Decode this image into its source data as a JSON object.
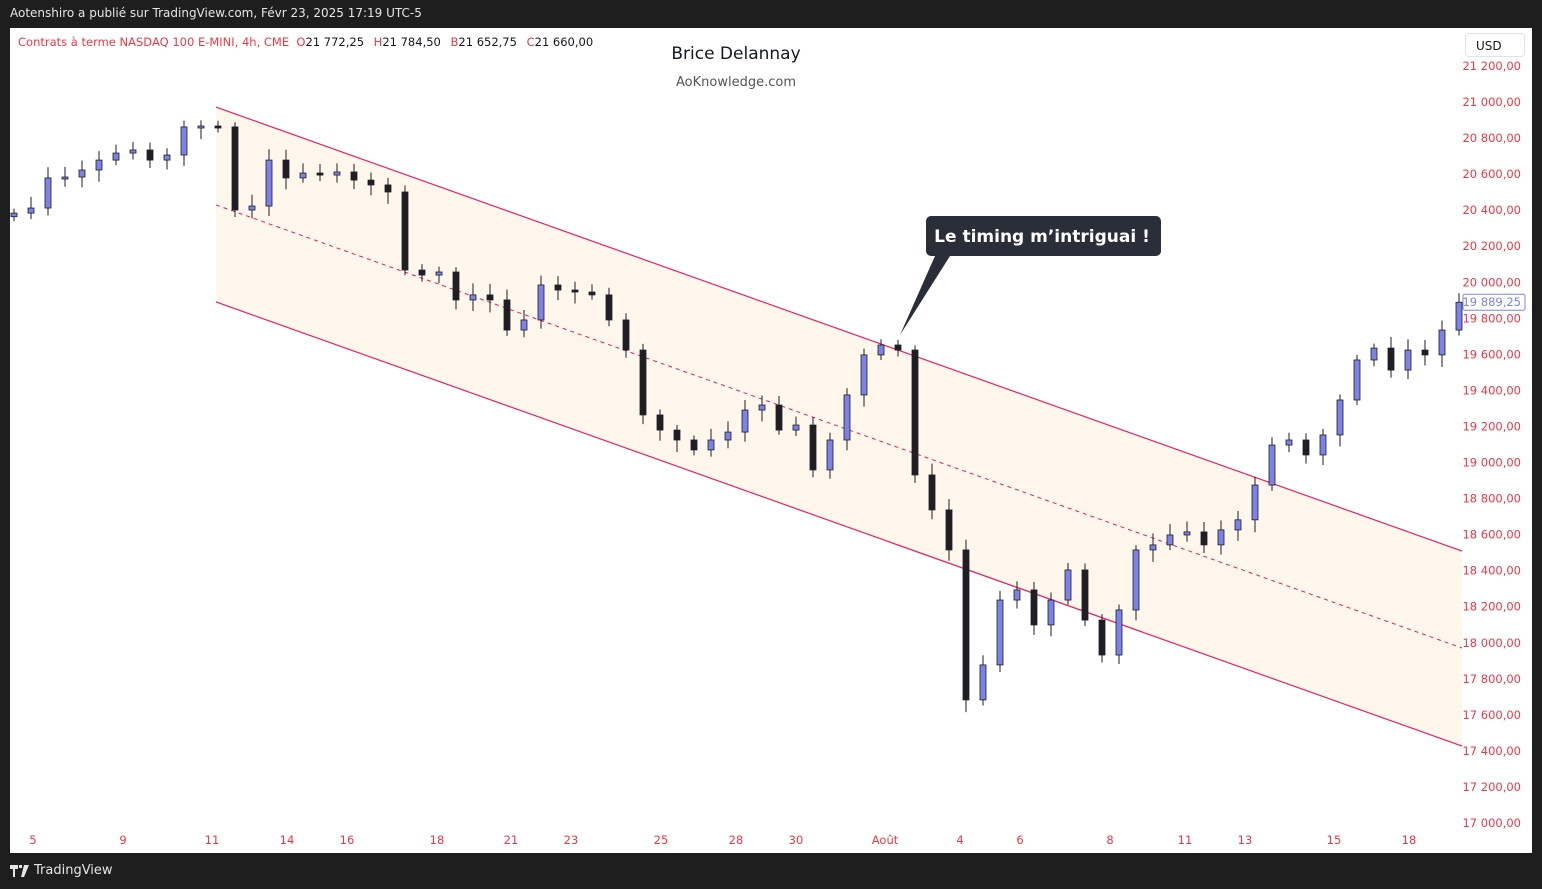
{
  "header": {
    "published": "Aotenshiro a publié sur TradingView.com, Févr 23, 2025 17:19 UTC-5"
  },
  "legend": {
    "symbol": "Contrats à terme NASDAQ 100 E-MINI, 4h, CME",
    "o_label": "O",
    "o": "21 772,25",
    "h_label": "H",
    "h": "21 784,50",
    "b_label": "B",
    "b": "21 652,75",
    "c_label": "C",
    "c": "21 660,00"
  },
  "watermark": {
    "title": "Brice Delannay",
    "subtitle": "AoKnowledge.com"
  },
  "currency": "USD",
  "callout": "Le timing m’intriguai !",
  "footer": {
    "brand": "TradingView"
  },
  "colors": {
    "up": "#7b83e8",
    "down": "#1e1e24",
    "channel": "#e91e63",
    "fill": "#fff6ec",
    "axis_text": "#f23645",
    "last_price": "#7b83e8"
  },
  "chart_data": {
    "type": "candlestick",
    "y_ticks": [
      "21 200,00",
      "21 000,00",
      "20 800,00",
      "20 600,00",
      "20 400,00",
      "20 200,00",
      "20 000,00",
      "19 800,00",
      "19 600,00",
      "19 400,00",
      "19 200,00",
      "19 000,00",
      "18 800,00",
      "18 600,00",
      "18 400,00",
      "18 200,00",
      "18 000,00",
      "17 800,00",
      "17 600,00",
      "17 400,00",
      "17 200,00",
      "17 000,00"
    ],
    "ylim": [
      17000,
      21200
    ],
    "x_ticks": [
      "5",
      "9",
      "11",
      "14",
      "16",
      "18",
      "21",
      "23",
      "25",
      "28",
      "30",
      "Août",
      "4",
      "6",
      "8",
      "11",
      "13",
      "15",
      "18"
    ],
    "closes": [
      20384,
      20412,
      20579,
      20584,
      20623,
      20678,
      20717,
      20734,
      20678,
      20706,
      20862,
      20867,
      20862,
      20401,
      20423,
      20678,
      20579,
      20606,
      20595,
      20612,
      20567,
      20540,
      20501,
      20068,
      20040,
      20057,
      19902,
      19930,
      19902,
      19735,
      19791,
      19985,
      19957,
      19946,
      19930,
      19791,
      19624,
      19264,
      19180,
      19125,
      19070,
      19125,
      19169,
      19291,
      19319,
      19180,
      19208,
      18959,
      19125,
      19375,
      19597,
      19652,
      19624,
      18931,
      18737,
      18515,
      17683,
      17877,
      18237,
      18293,
      18099,
      18237,
      18404,
      18126,
      17932,
      18182,
      18515,
      18543,
      18598,
      18615,
      18543,
      18626,
      18682,
      18875,
      19097,
      19125,
      19042,
      19153,
      19347,
      19569,
      19635,
      19513,
      19624,
      19597,
      19735,
      19889.25
    ],
    "last_price": "19 889,25",
    "channel": {
      "start_index": 12,
      "upper": [
        20972,
        18509
      ],
      "middle": [
        20429,
        17971
      ],
      "lower": [
        19891,
        17427
      ]
    }
  }
}
